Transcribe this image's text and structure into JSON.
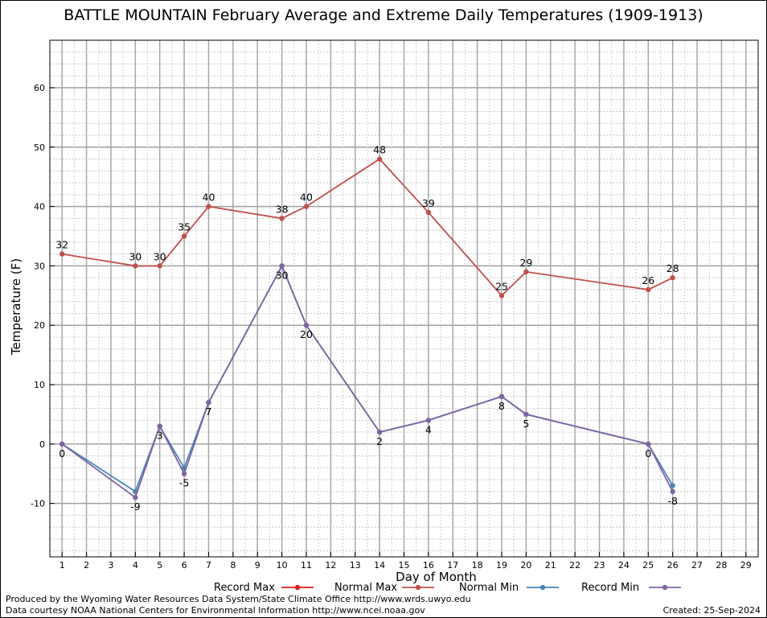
{
  "chart_data": {
    "type": "line",
    "title": "BATTLE MOUNTAIN February Average and Extreme Daily Temperatures (1909-1913)",
    "xlabel": "Day of Month",
    "ylabel": "Temperature (F)",
    "xlim": [
      0.5,
      29.5
    ],
    "ylim": [
      -19,
      68
    ],
    "x_ticks": [
      1,
      2,
      3,
      4,
      5,
      6,
      7,
      8,
      9,
      10,
      11,
      12,
      13,
      14,
      15,
      16,
      17,
      18,
      19,
      20,
      21,
      22,
      23,
      24,
      25,
      26,
      27,
      28,
      29
    ],
    "y_ticks": [
      -10,
      0,
      10,
      20,
      30,
      40,
      50,
      60
    ],
    "grid": true,
    "legend_position": "bottom",
    "series": [
      {
        "name": "Record Max",
        "color": "#e41a1c",
        "x": [],
        "values": [],
        "show_labels": false
      },
      {
        "name": "Normal Max",
        "color": "#c0504d",
        "x": [
          1,
          4,
          5,
          6,
          7,
          10,
          11,
          14,
          16,
          19,
          20,
          25,
          26
        ],
        "values": [
          32,
          30,
          30,
          35,
          40,
          38,
          40,
          48,
          39,
          25,
          29,
          26,
          28
        ],
        "show_labels": true,
        "label_side": "above"
      },
      {
        "name": "Normal Min",
        "color": "#4a86b8",
        "x": [
          1,
          4,
          5,
          6,
          7,
          10,
          11,
          14,
          16,
          19,
          20,
          25,
          26
        ],
        "values": [
          0,
          -8,
          3,
          -4,
          7,
          30,
          20,
          2,
          4,
          8,
          5,
          0,
          -7
        ],
        "show_labels": false
      },
      {
        "name": "Record Min",
        "color": "#8064a2",
        "x": [
          1,
          4,
          5,
          6,
          7,
          10,
          11,
          14,
          16,
          19,
          20,
          25,
          26
        ],
        "values": [
          0,
          -9,
          3,
          -5,
          7,
          30,
          20,
          2,
          4,
          8,
          5,
          0,
          -8
        ],
        "show_labels": true,
        "label_side": "below"
      }
    ]
  },
  "credits": {
    "produced_by": "Produced by the Wyoming Water Resources Data System/State Climate Office http://www.wrds.uwyo.edu",
    "data_courtesy": "Data courtesy NOAA National Centers for Environmental Information http://www.ncei.noaa.gov",
    "created": "Created:  25-Sep-2024"
  }
}
